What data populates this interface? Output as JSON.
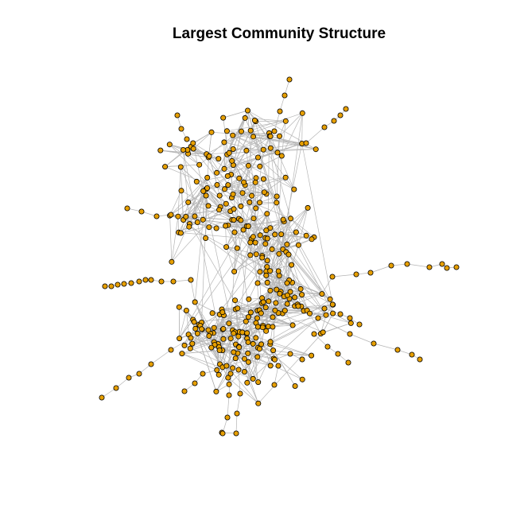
{
  "title": "Largest Community Structure",
  "style": {
    "background": "#ffffff",
    "node_fill": "#e69f00",
    "node_stroke": "#000000",
    "edge_color": "#b5b5b5"
  },
  "network": {
    "type": "network-graph",
    "node_count_approx": 330,
    "layout": "force-directed",
    "labels_shown": false
  }
}
